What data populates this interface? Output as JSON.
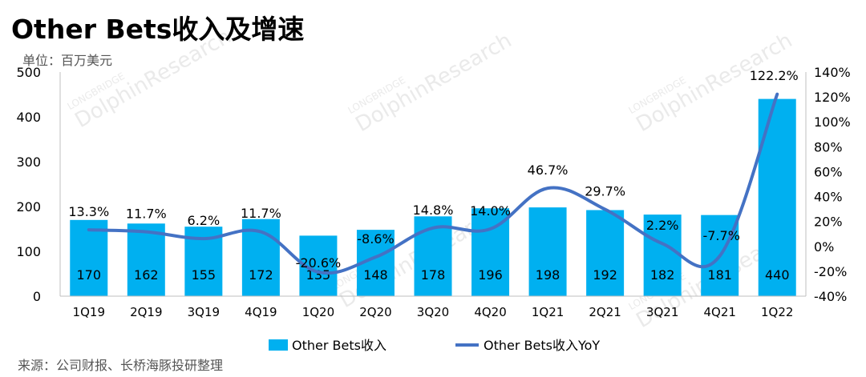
{
  "title": "Other Bets收入及增速",
  "unit": "单位：百万美元",
  "source": "来源：公司财报、长桥海豚投研整理",
  "watermark": {
    "brand": "DolphinResearch",
    "sub": "LONGBRIDGE"
  },
  "chart_data": {
    "type": "bar+line",
    "categories": [
      "1Q19",
      "2Q19",
      "3Q19",
      "4Q19",
      "1Q20",
      "2Q20",
      "3Q20",
      "4Q20",
      "1Q21",
      "2Q21",
      "3Q21",
      "4Q21",
      "1Q22"
    ],
    "series": [
      {
        "name": "Other Bets收入",
        "type": "bar",
        "axis": "left",
        "color": "#00b0f0",
        "values": [
          170,
          162,
          155,
          172,
          135,
          148,
          178,
          196,
          198,
          192,
          182,
          181,
          440
        ]
      },
      {
        "name": "Other Bets收入YoY",
        "type": "line",
        "axis": "right",
        "color": "#4472c4",
        "values": [
          13.3,
          11.7,
          6.2,
          11.7,
          -20.6,
          -8.6,
          14.8,
          14.0,
          46.7,
          29.7,
          2.2,
          -7.7,
          122.2
        ],
        "labels": [
          "13.3%",
          "11.7%",
          "6.2%",
          "11.7%",
          "-20.6%",
          "-8.6%",
          "14.8%",
          "14.0%",
          "46.7%",
          "29.7%",
          "2.2%",
          "-7.7%",
          "122.2%"
        ]
      }
    ],
    "y_left": {
      "min": 0,
      "max": 500,
      "ticks": [
        "0",
        "100",
        "200",
        "300",
        "400",
        "500"
      ]
    },
    "y_right": {
      "min": -40,
      "max": 140,
      "ticks": [
        "-40%",
        "-20%",
        "0%",
        "20%",
        "40%",
        "60%",
        "80%",
        "100%",
        "120%",
        "140%"
      ]
    },
    "legend_position": "bottom",
    "grid": false
  }
}
